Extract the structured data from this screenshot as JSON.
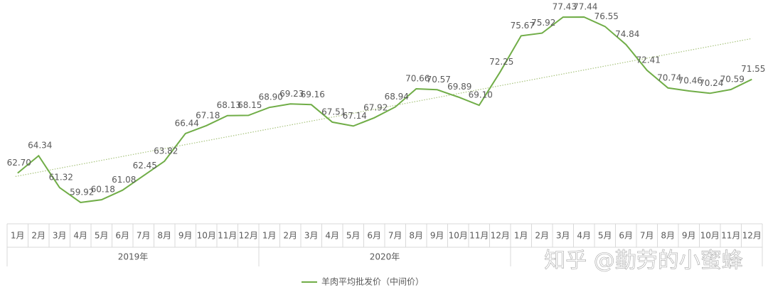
{
  "chart_data": {
    "type": "line",
    "categories": [
      "1月",
      "2月",
      "3月",
      "4月",
      "5月",
      "6月",
      "7月",
      "8月",
      "9月",
      "10月",
      "11月",
      "12月",
      "1月",
      "2月",
      "3月",
      "4月",
      "5月",
      "6月",
      "7月",
      "8月",
      "9月",
      "10月",
      "11月",
      "12月",
      "1月",
      "2月",
      "3月",
      "4月",
      "5月",
      "6月",
      "7月",
      "8月",
      "9月",
      "10月",
      "11月",
      "12月"
    ],
    "year_groups": [
      "2019年",
      "2020年",
      null
    ],
    "series": [
      {
        "name": "羊肉平均批发价（中间价）",
        "color": "#70ad47",
        "values": [
          62.7,
          64.34,
          61.32,
          59.92,
          60.18,
          61.08,
          62.45,
          63.82,
          66.44,
          67.18,
          68.13,
          68.15,
          68.9,
          69.23,
          69.16,
          67.51,
          67.14,
          67.92,
          68.94,
          70.66,
          70.57,
          69.89,
          69.1,
          72.25,
          75.67,
          75.92,
          77.43,
          77.44,
          76.55,
          74.84,
          72.41,
          70.74,
          70.46,
          70.24,
          70.59,
          71.55
        ],
        "value_labels": [
          "62.70",
          "64.34",
          "61.32",
          "59.92",
          "60.18",
          "61.08",
          "62.45",
          "63.82",
          "66.44",
          "67.18",
          "68.13",
          "68.15",
          "68.90",
          "69.23",
          "69.16",
          "67.51",
          "67.14",
          "67.92",
          "68.94",
          "70.66",
          "70.57",
          "69.89",
          "69.10",
          "72.25",
          "75.67",
          "75.92",
          "77.43",
          "77.44",
          "76.55",
          "74.84",
          "72.41",
          "70.74",
          "70.46",
          "70.24",
          "70.59",
          "71.55"
        ]
      }
    ],
    "trendline": true,
    "trendline_color": "#a9c47f",
    "legend": "bottom"
  },
  "watermark": "知乎 @勤劳的小蜜蜂"
}
